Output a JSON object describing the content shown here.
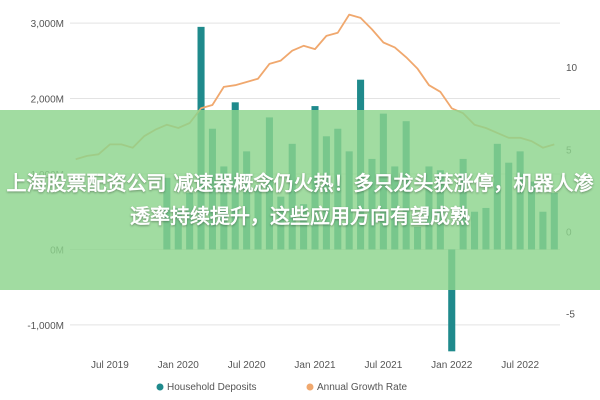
{
  "colors": {
    "bars": "#1f8a8c",
    "line": "#f0a86e",
    "banner": "#8cd48c",
    "banner_text": "#ffffff",
    "axis_text": "#555555",
    "grid": "#e3e3e3"
  },
  "chart_data": {
    "type": "bar",
    "title": "",
    "xlabel": "",
    "ylabel": "",
    "grid": true,
    "legend_position": "bottom-center",
    "y_left": {
      "ylim": [
        -1200,
        3200
      ],
      "ticks": [
        -1000,
        0,
        1000,
        2000,
        3000
      ],
      "tick_labels": [
        "-1,000M",
        "0M",
        "1,000M",
        "2,000M",
        "3,000M"
      ]
    },
    "y_right": {
      "ylim": [
        -6.6,
        13.6
      ],
      "ticks": [
        -5,
        0,
        5,
        10
      ],
      "tick_labels": [
        "-5",
        "0",
        "5",
        "10"
      ]
    },
    "x_axis": {
      "ticks": [
        "2019-07",
        "2020-01",
        "2020-07",
        "2021-01",
        "2021-07",
        "2022-01",
        "2022-07"
      ],
      "tick_labels": [
        "Jul 2019",
        "Jan 2020",
        "Jul 2020",
        "Jan 2021",
        "Jul 2021",
        "Jan 2022",
        "Jul 2022"
      ]
    },
    "series": [
      {
        "name": "Household Deposits",
        "kind": "bar",
        "axis": "left",
        "months": [
          "2019-12",
          "2020-01",
          "2020-02",
          "2020-03",
          "2020-04",
          "2020-05",
          "2020-06",
          "2020-07",
          "2020-08",
          "2020-09",
          "2020-10",
          "2020-11",
          "2020-12",
          "2021-01",
          "2021-02",
          "2021-03",
          "2021-04",
          "2021-05",
          "2021-06",
          "2021-07",
          "2021-08",
          "2021-09",
          "2021-10",
          "2021-11",
          "2021-12",
          "2022-01",
          "2022-02",
          "2022-03",
          "2022-04",
          "2022-05",
          "2022-06",
          "2022-07",
          "2022-08",
          "2022-09",
          "2022-10"
        ],
        "values": [
          950,
          550,
          750,
          2950,
          1600,
          1100,
          1950,
          1300,
          850,
          1750,
          700,
          1400,
          600,
          1900,
          1500,
          1600,
          1300,
          2250,
          1200,
          1800,
          1100,
          1700,
          300,
          1100,
          1050,
          -1350,
          1200,
          500,
          550,
          1400,
          1150,
          1300,
          900,
          500,
          750
        ]
      },
      {
        "name": "Annual Growth Rate",
        "kind": "line",
        "axis": "right",
        "months": [
          "2019-04",
          "2019-05",
          "2019-06",
          "2019-07",
          "2019-08",
          "2019-09",
          "2019-10",
          "2019-11",
          "2019-12",
          "2020-01",
          "2020-02",
          "2020-03",
          "2020-04",
          "2020-05",
          "2020-06",
          "2020-07",
          "2020-08",
          "2020-09",
          "2020-10",
          "2020-11",
          "2020-12",
          "2021-01",
          "2021-02",
          "2021-03",
          "2021-04",
          "2021-05",
          "2021-06",
          "2021-07",
          "2021-08",
          "2021-09",
          "2021-10",
          "2021-11",
          "2021-12",
          "2022-01",
          "2022-02",
          "2022-03",
          "2022-04",
          "2022-05",
          "2022-06",
          "2022-07",
          "2022-08",
          "2022-09",
          "2022-10"
        ],
        "values": [
          4.4,
          4.6,
          4.7,
          5.3,
          5.3,
          5.1,
          5.8,
          6.2,
          6.5,
          6.3,
          6.6,
          7.5,
          7.7,
          8.8,
          8.9,
          9.1,
          9.3,
          10.2,
          10.4,
          11.0,
          11.3,
          11.1,
          11.9,
          12.1,
          13.2,
          13.0,
          12.3,
          11.5,
          11.2,
          10.6,
          9.9,
          8.9,
          8.5,
          7.5,
          7.2,
          6.5,
          6.3,
          6.0,
          5.7,
          5.7,
          5.5,
          5.1,
          5.3
        ]
      }
    ]
  },
  "overlay": {
    "text": "上海股票配资公司 减速器概念仍火热！多只龙头获涨停，机器人渗透率持续提升，这些应用方向有望成熟"
  }
}
